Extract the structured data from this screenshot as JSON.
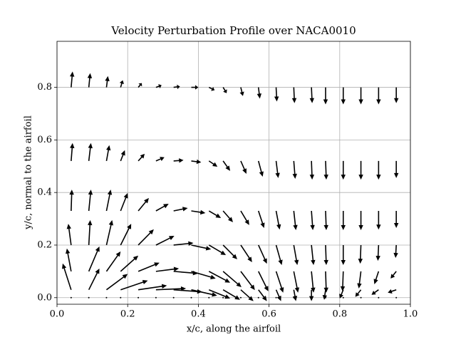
{
  "chart_data": {
    "type": "quiver",
    "title": "Velocity Perturbation Profile over NACA0010",
    "xlabel": "x/c, along the airfoil",
    "ylabel": "y/c, normal to the airfoil",
    "xlim": [
      0,
      1
    ],
    "ylim": [
      -0.025,
      0.975
    ],
    "xticks": [
      {
        "value": 0,
        "label": "0.0"
      },
      {
        "value": 0.2,
        "label": "0.2"
      },
      {
        "value": 0.4,
        "label": "0.4"
      },
      {
        "value": 0.6,
        "label": "0.6"
      },
      {
        "value": 0.8,
        "label": "0.8"
      },
      {
        "value": 1,
        "label": "1.0"
      }
    ],
    "yticks": [
      {
        "value": 0,
        "label": "0.0"
      },
      {
        "value": 0.2,
        "label": "0.2"
      },
      {
        "value": 0.4,
        "label": "0.4"
      },
      {
        "value": 0.6,
        "label": "0.6"
      },
      {
        "value": 0.8,
        "label": "0.8"
      }
    ],
    "grid": true,
    "color": "#000000",
    "x": [
      0.04,
      0.09,
      0.14,
      0.18,
      0.23,
      0.28,
      0.33,
      0.38,
      0.43,
      0.47,
      0.52,
      0.57,
      0.62,
      0.67,
      0.72,
      0.76,
      0.81,
      0.86,
      0.91,
      0.96
    ],
    "rows": [
      {
        "y": 0.8,
        "u": [
          0.004,
          0.004,
          0.004,
          0.006,
          0.01,
          0.016,
          0.018,
          0.02,
          0.016,
          0.01,
          0.006,
          0.004,
          0.002,
          0.002,
          0.002,
          0,
          0,
          0,
          0,
          0
        ],
        "v": [
          0.06,
          0.054,
          0.043,
          0.027,
          0.016,
          0.008,
          0.003,
          0,
          -0.011,
          -0.022,
          -0.033,
          -0.043,
          -0.054,
          -0.06,
          -0.06,
          -0.065,
          -0.065,
          -0.065,
          -0.065,
          -0.06
        ]
      },
      {
        "y": 0.52,
        "u": [
          0.004,
          0.006,
          0.008,
          0.012,
          0.018,
          0.024,
          0.028,
          0.028,
          0.024,
          0.02,
          0.016,
          0.012,
          0.006,
          0.004,
          0.002,
          0.002,
          0,
          0,
          0,
          0
        ],
        "v": [
          0.068,
          0.068,
          0.06,
          0.041,
          0.027,
          0.014,
          0.003,
          -0.005,
          -0.022,
          -0.038,
          -0.049,
          -0.06,
          -0.065,
          -0.068,
          -0.071,
          -0.071,
          -0.071,
          -0.071,
          -0.071,
          -0.065
        ]
      },
      {
        "y": 0.33,
        "u": [
          0.002,
          0.006,
          0.012,
          0.02,
          0.03,
          0.036,
          0.04,
          0.04,
          0.034,
          0.028,
          0.024,
          0.016,
          0.01,
          0.006,
          0.004,
          0.002,
          0,
          0,
          0,
          0
        ],
        "v": [
          0.081,
          0.081,
          0.081,
          0.068,
          0.049,
          0.027,
          0.011,
          -0.008,
          -0.027,
          -0.043,
          -0.054,
          -0.065,
          -0.071,
          -0.073,
          -0.073,
          -0.073,
          -0.073,
          -0.073,
          -0.071,
          -0.065
        ]
      },
      {
        "y": 0.2,
        "u": [
          -0.008,
          0.004,
          0.016,
          0.03,
          0.044,
          0.052,
          0.056,
          0.056,
          0.048,
          0.04,
          0.032,
          0.024,
          0.016,
          0.01,
          0.006,
          0.002,
          0,
          -0.002,
          -0.002,
          -0.002
        ],
        "v": [
          0.081,
          0.095,
          0.095,
          0.081,
          0.06,
          0.035,
          0.008,
          -0.016,
          -0.038,
          -0.054,
          -0.065,
          -0.071,
          -0.076,
          -0.076,
          -0.076,
          -0.076,
          -0.076,
          -0.071,
          -0.06,
          -0.049
        ]
      },
      {
        "y": 0.1,
        "u": [
          -0.012,
          0.03,
          0.04,
          0.05,
          0.06,
          0.065,
          0.069,
          0.069,
          0.06,
          0.052,
          0.04,
          0.028,
          0.02,
          0.012,
          0.006,
          0.002,
          -0.002,
          -0.006,
          -0.012,
          -0.016
        ],
        "v": [
          0.087,
          0.095,
          0.076,
          0.06,
          0.033,
          0.011,
          -0.008,
          -0.027,
          -0.043,
          -0.06,
          -0.071,
          -0.076,
          -0.081,
          -0.081,
          -0.081,
          -0.081,
          -0.076,
          -0.065,
          -0.049,
          -0.027
        ]
      },
      {
        "y": 0.03,
        "u": [
          -0.024,
          0.03,
          0.06,
          0.077,
          0.081,
          0.085,
          0.081,
          0.073,
          0.06,
          0.048,
          0.036,
          0.024,
          0.014,
          0.006,
          0,
          -0.004,
          -0.01,
          -0.016,
          -0.02,
          -0.024
        ],
        "v": [
          0.1,
          0.081,
          0.06,
          0.035,
          0.016,
          0.005,
          -0.008,
          -0.022,
          -0.033,
          -0.038,
          -0.043,
          -0.043,
          -0.043,
          -0.043,
          -0.043,
          -0.038,
          -0.033,
          -0.027,
          -0.019,
          -0.011
        ]
      },
      {
        "y": 0,
        "u": [
          0,
          0,
          0,
          0,
          0,
          0,
          0,
          0,
          0,
          0,
          0,
          0,
          0,
          0,
          0,
          0,
          0,
          0,
          0,
          0
        ],
        "v": [
          0,
          0,
          0,
          0,
          0,
          0,
          0,
          0,
          0,
          0,
          0,
          0,
          0,
          0,
          0,
          0,
          0,
          0,
          0,
          0
        ]
      }
    ]
  }
}
